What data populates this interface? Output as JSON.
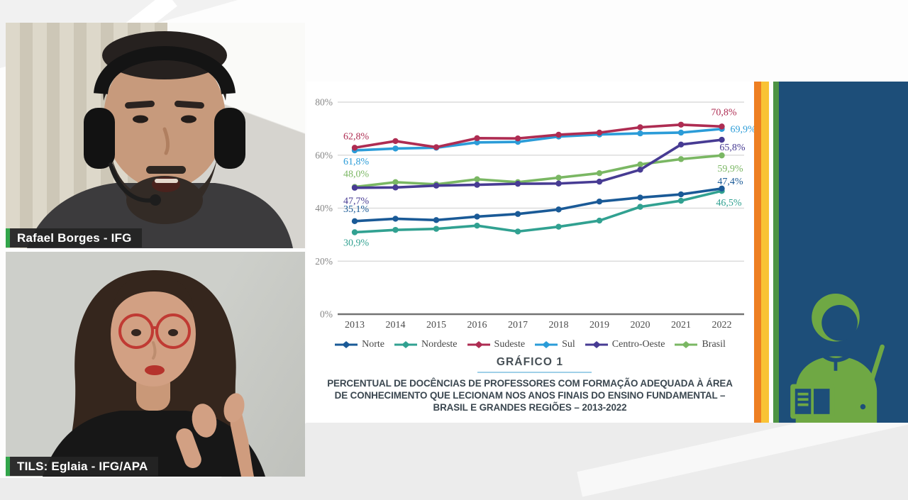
{
  "meeting": {
    "participants": [
      {
        "name": "Rafael Borges - IFG"
      },
      {
        "name": "TILS: Eglaia - IFG/APA"
      }
    ],
    "name_tag_accent_color": "#32a54a"
  },
  "slide": {
    "title": "GRÁFICO 1",
    "title_underline_color": "#9fd0e8",
    "subtitle_lines": [
      "PERCENTUAL DE DOCÊNCIAS DE PROFESSORES COM FORMAÇÃO ADEQUADA À ÁREA",
      "DE CONHECIMENTO QUE LECIONAM NOS ANOS FINAIS DO ENSINO FUNDAMENTAL –",
      "BRASIL E GRANDES REGIÕES – 2013-2022"
    ],
    "side_stripe_colors": [
      "#ee7f22",
      "#f9c335",
      "#4d9343"
    ],
    "side_panel_color": "#1d4e79",
    "teacher_icon_color": "#6fa844",
    "teacher_icon": "teacher-with-book-and-pointer"
  },
  "chart_data": {
    "type": "line",
    "title": "GRÁFICO 1",
    "x": [
      2013,
      2014,
      2015,
      2016,
      2017,
      2018,
      2019,
      2020,
      2021,
      2022
    ],
    "ylim": [
      0,
      80
    ],
    "yticks": [
      0,
      20,
      40,
      60,
      80
    ],
    "ytick_format": "percent",
    "grid": true,
    "legend_position": "bottom",
    "series": [
      {
        "name": "Norte",
        "color": "#1a5a97",
        "values": [
          35.1,
          36.0,
          35.5,
          36.8,
          37.8,
          39.5,
          42.5,
          44.0,
          45.2,
          47.4
        ],
        "first_label": "35,1%",
        "last_label": "47,4%"
      },
      {
        "name": "Nordeste",
        "color": "#31a191",
        "values": [
          30.9,
          31.8,
          32.2,
          33.4,
          31.2,
          33.0,
          35.3,
          40.5,
          42.8,
          46.5
        ],
        "first_label": "30,9%",
        "last_label": "46,5%"
      },
      {
        "name": "Sudeste",
        "color": "#ae2c52",
        "values": [
          62.8,
          65.3,
          63.0,
          66.4,
          66.3,
          67.7,
          68.5,
          70.5,
          71.5,
          70.8
        ],
        "first_label": "62,8%",
        "last_label": "70,8%"
      },
      {
        "name": "Sul",
        "color": "#2b9cd8",
        "values": [
          61.8,
          62.5,
          62.8,
          64.8,
          65.0,
          67.0,
          67.8,
          68.2,
          68.5,
          69.9
        ],
        "first_label": "61,8%",
        "last_label": "69,9%"
      },
      {
        "name": "Centro-Oeste",
        "color": "#473b93",
        "values": [
          47.7,
          47.8,
          48.5,
          48.8,
          49.2,
          49.3,
          50.0,
          54.5,
          64.0,
          65.8
        ],
        "first_label": "47,7%",
        "last_label": "65,8%"
      },
      {
        "name": "Brasil",
        "color": "#7ab763",
        "values": [
          48.0,
          49.8,
          49.0,
          50.9,
          49.8,
          51.5,
          53.2,
          56.5,
          58.5,
          59.9
        ],
        "first_label": "48,0%",
        "last_label": "59,9%"
      }
    ]
  }
}
